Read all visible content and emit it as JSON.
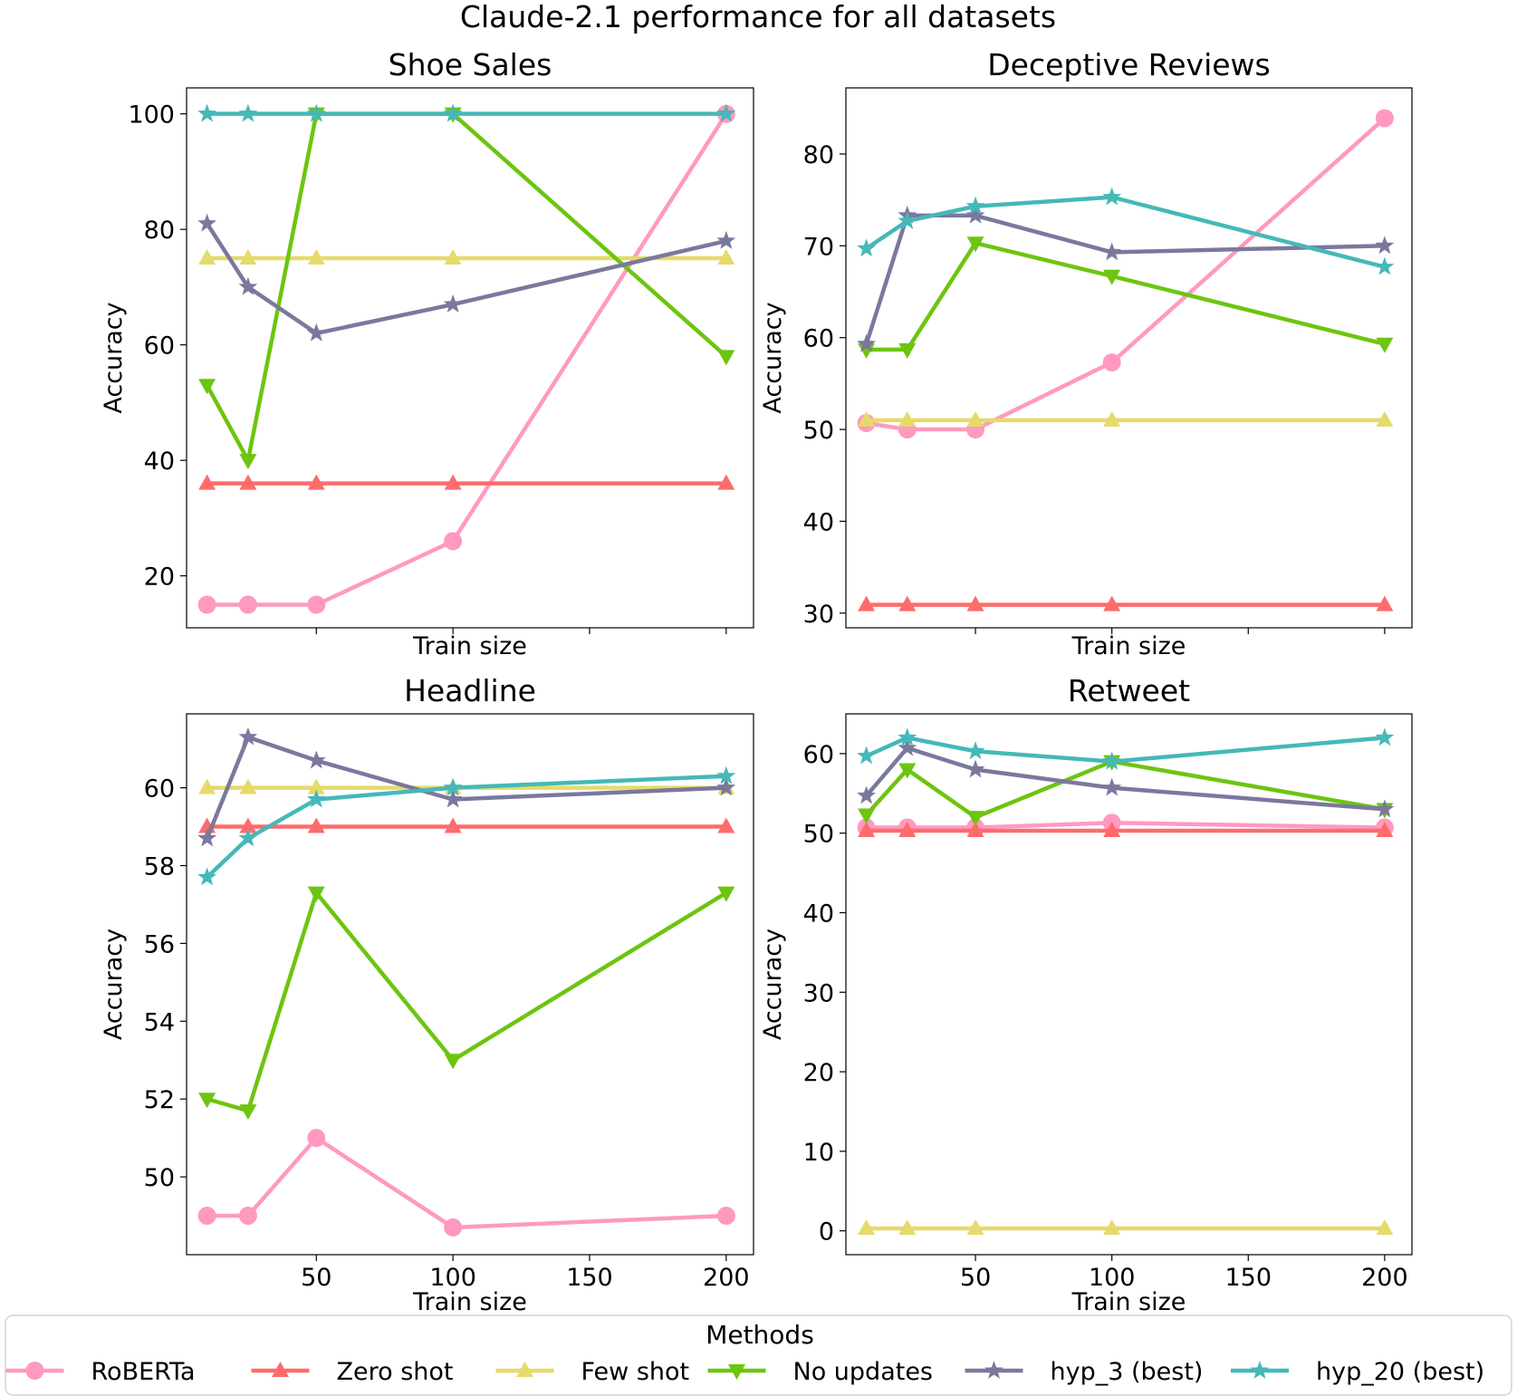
{
  "figure": {
    "title": "Claude-2.1 performance for all datasets"
  },
  "legend": {
    "title": "Methods",
    "placement": "bottom-center"
  },
  "methods": [
    {
      "name": "RoBERTa",
      "color": "#ff99c0",
      "marker": "circle"
    },
    {
      "name": "Zero shot",
      "color": "#ff6b6b",
      "marker": "triangle-up"
    },
    {
      "name": "Few shot",
      "color": "#e6da6a",
      "marker": "triangle-up"
    },
    {
      "name": "No updates",
      "color": "#6cc50f",
      "marker": "triangle-down"
    },
    {
      "name": "hyp_3 (best)",
      "color": "#7b789e",
      "marker": "star"
    },
    {
      "name": "hyp_20 (best)",
      "color": "#45b8b8",
      "marker": "star"
    }
  ],
  "chart_data": [
    {
      "type": "line",
      "title": "Shoe Sales",
      "xlabel": "Train size",
      "ylabel": "Accuracy",
      "x": [
        10,
        25,
        50,
        100,
        200
      ],
      "xlim": [
        2.5,
        210
      ],
      "ylim": [
        11,
        104.5
      ],
      "xticks": [
        50,
        100,
        150,
        200
      ],
      "xticklabels_shown": false,
      "yticks": [
        20,
        40,
        60,
        80,
        100
      ],
      "grid": false,
      "series": [
        {
          "name": "RoBERTa",
          "values": [
            15,
            15,
            15,
            26,
            100
          ]
        },
        {
          "name": "Zero shot",
          "values": [
            36,
            36,
            36,
            36,
            36
          ]
        },
        {
          "name": "Few shot",
          "values": [
            75,
            75,
            75,
            75,
            75
          ]
        },
        {
          "name": "No updates",
          "values": [
            53,
            40,
            100,
            100,
            58
          ]
        },
        {
          "name": "hyp_3 (best)",
          "values": [
            81,
            70,
            62,
            67,
            78
          ]
        },
        {
          "name": "hyp_20 (best)",
          "values": [
            100,
            100,
            100,
            100,
            100
          ]
        }
      ]
    },
    {
      "type": "line",
      "title": "Deceptive Reviews",
      "xlabel": "Train size",
      "ylabel": "Accuracy",
      "x": [
        10,
        25,
        50,
        100,
        200
      ],
      "xlim": [
        2.5,
        210
      ],
      "ylim": [
        28.4,
        87.2
      ],
      "xticks": [
        50,
        100,
        150,
        200
      ],
      "xticklabels_shown": false,
      "yticks": [
        30,
        40,
        50,
        60,
        70,
        80
      ],
      "grid": false,
      "series": [
        {
          "name": "RoBERTa",
          "values": [
            50.7,
            50.0,
            50.0,
            57.3,
            83.9
          ]
        },
        {
          "name": "Zero shot",
          "values": [
            30.9,
            30.9,
            30.9,
            30.9,
            30.9
          ]
        },
        {
          "name": "Few shot",
          "values": [
            51.0,
            51.0,
            51.0,
            51.0,
            51.0
          ]
        },
        {
          "name": "No updates",
          "values": [
            58.7,
            58.7,
            70.3,
            66.7,
            59.3
          ]
        },
        {
          "name": "hyp_3 (best)",
          "values": [
            59.3,
            73.3,
            73.3,
            69.3,
            70.0
          ]
        },
        {
          "name": "hyp_20 (best)",
          "values": [
            69.7,
            72.7,
            74.3,
            75.3,
            67.7
          ]
        }
      ]
    },
    {
      "type": "line",
      "title": "Headline",
      "xlabel": "Train size",
      "ylabel": "Accuracy",
      "x": [
        10,
        25,
        50,
        100,
        200
      ],
      "xlim": [
        2.5,
        210
      ],
      "ylim": [
        48.0,
        61.9
      ],
      "xticks": [
        50,
        100,
        150,
        200
      ],
      "xticklabels_shown": true,
      "yticks": [
        50,
        52,
        54,
        56,
        58,
        60
      ],
      "grid": false,
      "series": [
        {
          "name": "RoBERTa",
          "values": [
            49.0,
            49.0,
            51.0,
            48.7,
            49.0
          ]
        },
        {
          "name": "Zero shot",
          "values": [
            59.0,
            59.0,
            59.0,
            59.0,
            59.0
          ]
        },
        {
          "name": "Few shot",
          "values": [
            60.0,
            60.0,
            60.0,
            60.0,
            60.0
          ]
        },
        {
          "name": "No updates",
          "values": [
            52.0,
            51.7,
            57.3,
            53.0,
            57.3
          ]
        },
        {
          "name": "hyp_3 (best)",
          "values": [
            58.7,
            61.3,
            60.7,
            59.7,
            60.0
          ]
        },
        {
          "name": "hyp_20 (best)",
          "values": [
            57.7,
            58.7,
            59.7,
            60.0,
            60.3
          ]
        }
      ]
    },
    {
      "type": "line",
      "title": "Retweet",
      "xlabel": "Train size",
      "ylabel": "Accuracy",
      "x": [
        10,
        25,
        50,
        100,
        200
      ],
      "xlim": [
        2.5,
        210
      ],
      "ylim": [
        -3.0,
        65.0
      ],
      "xticks": [
        50,
        100,
        150,
        200
      ],
      "xticklabels_shown": true,
      "yticks": [
        0,
        10,
        20,
        30,
        40,
        50,
        60
      ],
      "grid": false,
      "series": [
        {
          "name": "RoBERTa",
          "values": [
            50.7,
            50.7,
            50.7,
            51.3,
            50.7
          ]
        },
        {
          "name": "Zero shot",
          "values": [
            50.3,
            50.3,
            50.3,
            50.3,
            50.3
          ]
        },
        {
          "name": "Few shot",
          "values": [
            0.3,
            0.3,
            0.3,
            0.3,
            0.3
          ]
        },
        {
          "name": "No updates",
          "values": [
            52.3,
            58.0,
            52.0,
            59.0,
            53.0
          ]
        },
        {
          "name": "hyp_3 (best)",
          "values": [
            54.7,
            60.7,
            58.0,
            55.7,
            53.0
          ]
        },
        {
          "name": "hyp_20 (best)",
          "values": [
            59.7,
            62.0,
            60.3,
            59.0,
            62.0
          ]
        }
      ]
    }
  ]
}
